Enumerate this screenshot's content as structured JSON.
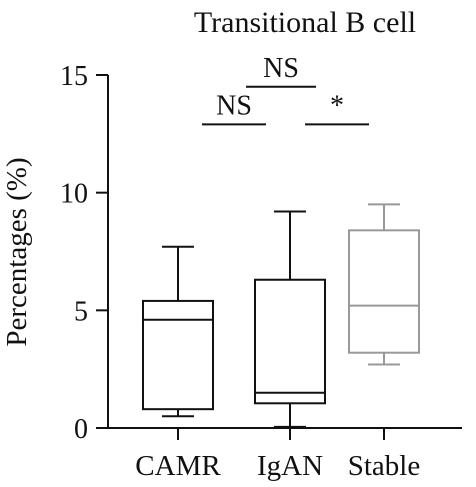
{
  "chart_data": {
    "type": "box",
    "title": "Transitional B cell",
    "ylabel": "Percentages (%)",
    "xlabel": "",
    "ylim": [
      0,
      15
    ],
    "yticks": [
      0,
      5,
      10,
      15
    ],
    "grid": false,
    "legend": "none",
    "categories": [
      "CAMR",
      "IgAN",
      "Stable"
    ],
    "boxes": [
      {
        "category": "CAMR",
        "min": 0.5,
        "q1": 0.8,
        "median": 4.6,
        "q3": 5.4,
        "max": 7.7,
        "color": "#111111"
      },
      {
        "category": "IgAN",
        "min": 0.05,
        "q1": 1.05,
        "median": 1.5,
        "q3": 6.3,
        "max": 9.2,
        "color": "#111111"
      },
      {
        "category": "Stable",
        "min": 2.7,
        "q1": 3.2,
        "median": 5.2,
        "q3": 8.4,
        "max": 9.5,
        "color": "#999999"
      }
    ],
    "significance": [
      {
        "from": "CAMR",
        "to": "IgAN",
        "label": "NS",
        "y": 12.9
      },
      {
        "from": "IgAN",
        "to": "Stable",
        "label": "*",
        "y": 12.9
      },
      {
        "from": "CAMR",
        "to": "Stable",
        "label": "NS",
        "y": 14.5
      }
    ]
  }
}
